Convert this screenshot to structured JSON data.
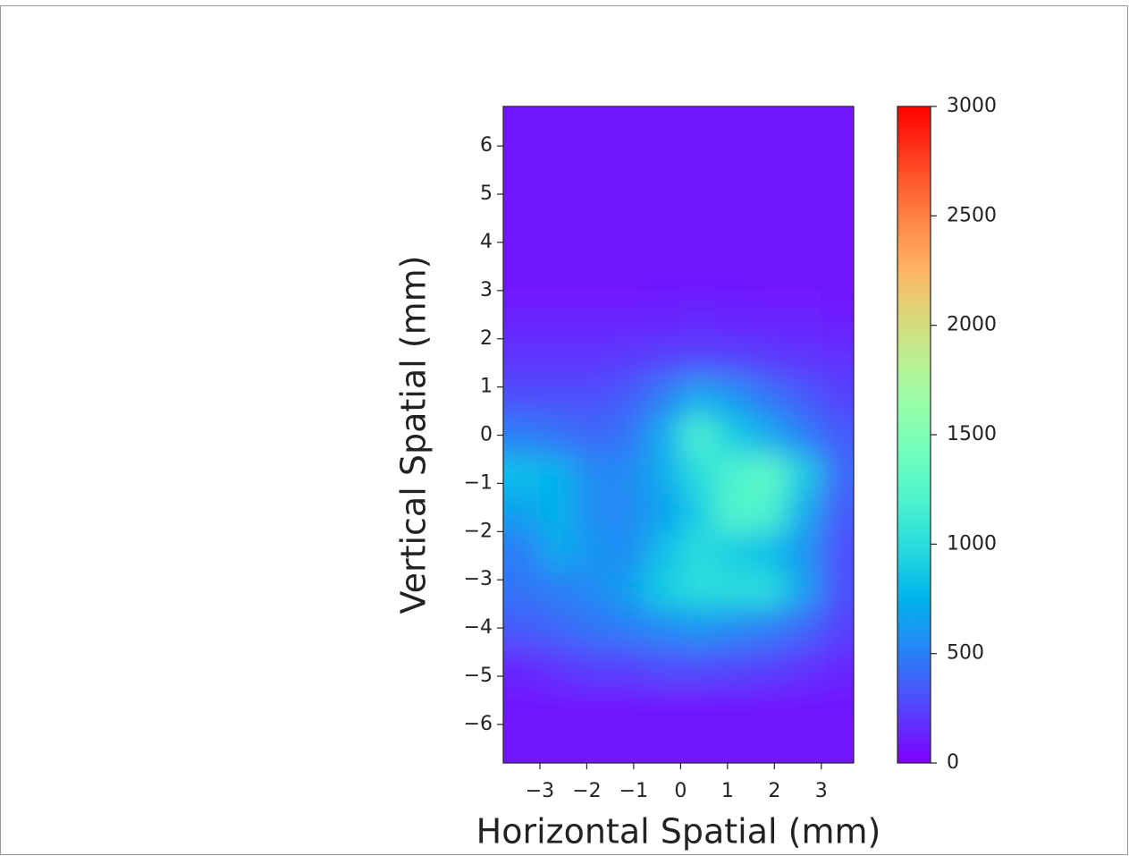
{
  "chart_data": {
    "type": "heatmap",
    "x_label": "Horizontal Spatial (mm)",
    "y_label": "Vertical Spatial (mm)",
    "colormap": "rainbow",
    "xlim": [
      -3.78,
      3.69
    ],
    "ylim": [
      -6.8,
      6.82
    ],
    "zlim": [
      0,
      3000
    ],
    "xticks": [
      {
        "value": -3,
        "label": "−3"
      },
      {
        "value": -2,
        "label": "−2"
      },
      {
        "value": -1,
        "label": "−1"
      },
      0,
      1,
      2,
      3
    ],
    "yticks": [
      {
        "value": -6,
        "label": "−6"
      },
      {
        "value": -5,
        "label": "−5"
      },
      {
        "value": -4,
        "label": "−4"
      },
      {
        "value": -3,
        "label": "−3"
      },
      {
        "value": -2,
        "label": "−2"
      },
      {
        "value": -1,
        "label": "−1"
      },
      0,
      1,
      2,
      3,
      4,
      5,
      6
    ],
    "zticks": [
      0,
      500,
      1000,
      1500,
      2000,
      2500,
      3000
    ],
    "x": [
      -3.375,
      -2.625,
      -1.875,
      -1.125,
      -0.375,
      0.375,
      1.125,
      1.875,
      2.625,
      3.375
    ],
    "y": [
      6.4,
      5.6,
      4.8,
      4.0,
      3.2,
      2.4,
      1.6,
      0.8,
      0.0,
      -0.8,
      -1.6,
      -2.4,
      -3.2,
      -4.0,
      -4.8,
      -5.6,
      -6.4
    ],
    "z": [
      [
        80,
        80,
        80,
        80,
        80,
        80,
        80,
        80,
        80,
        80
      ],
      [
        80,
        80,
        80,
        80,
        80,
        80,
        80,
        80,
        80,
        80
      ],
      [
        80,
        80,
        80,
        80,
        80,
        80,
        80,
        80,
        80,
        80
      ],
      [
        80,
        80,
        80,
        80,
        80,
        80,
        80,
        80,
        80,
        80
      ],
      [
        80,
        80,
        80,
        80,
        90,
        90,
        90,
        80,
        80,
        80
      ],
      [
        120,
        120,
        120,
        120,
        130,
        140,
        130,
        120,
        120,
        110
      ],
      [
        200,
        200,
        200,
        220,
        250,
        260,
        250,
        220,
        200,
        180
      ],
      [
        300,
        300,
        300,
        350,
        500,
        700,
        600,
        450,
        350,
        250
      ],
      [
        500,
        450,
        400,
        450,
        700,
        1200,
        900,
        700,
        500,
        350
      ],
      [
        800,
        750,
        550,
        550,
        700,
        1000,
        1200,
        1300,
        900,
        400
      ],
      [
        650,
        750,
        550,
        550,
        650,
        900,
        1250,
        1200,
        700,
        350
      ],
      [
        500,
        700,
        600,
        550,
        800,
        1000,
        900,
        800,
        600,
        300
      ],
      [
        450,
        500,
        550,
        650,
        900,
        1000,
        1000,
        1000,
        650,
        300
      ],
      [
        350,
        400,
        450,
        500,
        550,
        600,
        550,
        500,
        400,
        250
      ],
      [
        150,
        200,
        250,
        250,
        300,
        300,
        280,
        250,
        200,
        150
      ],
      [
        90,
        90,
        90,
        90,
        90,
        90,
        90,
        90,
        90,
        90
      ],
      [
        80,
        80,
        80,
        80,
        80,
        80,
        80,
        80,
        80,
        80
      ]
    ]
  }
}
